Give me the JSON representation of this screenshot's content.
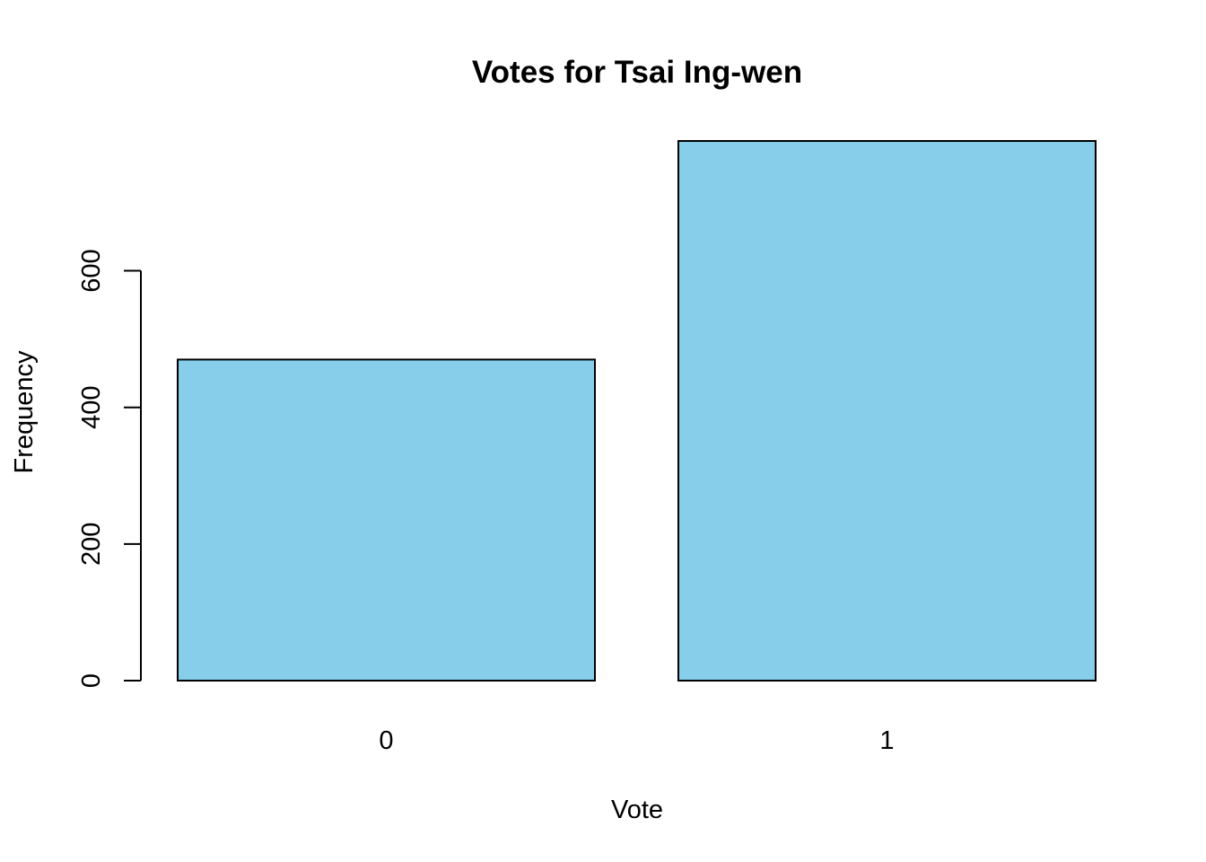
{
  "chart_data": {
    "type": "bar",
    "title": "Votes for Tsai Ing-wen",
    "xlabel": "Vote",
    "ylabel": "Frequency",
    "categories": [
      "0",
      "1"
    ],
    "values": [
      470,
      790
    ],
    "ylim": [
      0,
      790
    ],
    "yticks": [
      0,
      200,
      400,
      600
    ],
    "ytick_labels": [
      "0",
      "200",
      "400",
      "600"
    ],
    "bar_color": "#87CEEB",
    "bar_border_color": "#000000",
    "grid": false,
    "legend": "none"
  }
}
